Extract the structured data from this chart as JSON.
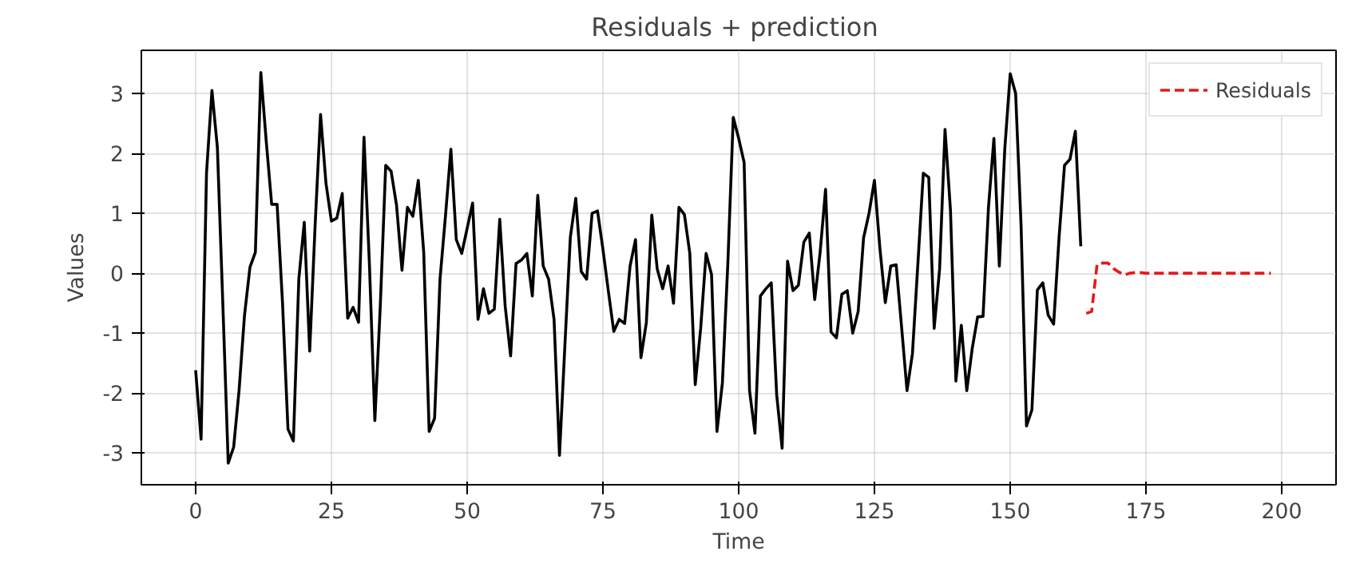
{
  "chart_data": {
    "type": "line",
    "title": "Residuals +  prediction",
    "xlabel": "Time",
    "ylabel": "Values",
    "xlim": [
      -10,
      210
    ],
    "ylim": [
      -3.53,
      3.72
    ],
    "xticks": [
      0,
      25,
      50,
      75,
      100,
      125,
      150,
      175,
      200
    ],
    "yticks": [
      -3,
      -2,
      -1,
      0,
      1,
      2,
      3
    ],
    "grid": true,
    "legend": "top right",
    "line_style": "solid",
    "marker": "none",
    "series": [
      {
        "color": "#000000",
        "x": [
          0,
          1,
          2,
          3,
          4,
          5,
          6,
          7,
          8,
          9,
          10,
          11,
          12,
          13,
          14,
          15,
          16,
          17,
          18,
          19,
          20,
          21,
          22,
          23,
          24,
          25,
          26,
          27,
          28,
          29,
          30,
          31,
          32,
          33,
          34,
          35,
          36,
          37,
          38,
          39,
          40,
          41,
          42,
          43,
          44,
          45,
          46,
          47,
          48,
          49,
          50,
          51,
          52,
          53,
          54,
          55,
          56,
          57,
          58,
          59,
          60,
          61,
          62,
          63,
          64,
          65,
          66,
          67,
          68,
          69,
          70,
          71,
          72,
          73,
          74,
          75,
          76,
          77,
          78,
          79,
          80,
          81,
          82,
          83,
          84,
          85,
          86,
          87,
          88,
          89,
          90,
          91,
          92,
          93,
          94,
          95,
          96,
          97,
          98,
          99,
          100,
          101,
          102,
          103,
          104,
          105,
          106,
          107,
          108,
          109,
          110,
          111,
          112,
          113,
          114,
          115,
          116,
          117,
          118,
          119,
          120,
          121,
          122,
          123,
          124,
          125,
          126,
          127,
          128,
          129,
          130,
          131,
          132,
          133,
          134,
          135,
          136,
          137,
          138,
          139,
          140,
          141,
          142,
          143,
          144,
          145,
          146,
          147,
          148,
          149,
          150,
          151,
          152,
          153,
          154,
          155,
          156,
          157,
          158,
          159,
          160,
          161,
          162,
          163
        ],
        "values": [
          -1.62,
          -2.77,
          1.67,
          3.05,
          2.1,
          -0.5,
          -3.17,
          -2.9,
          -1.95,
          -0.7,
          0.1,
          0.35,
          3.35,
          2.2,
          1.15,
          1.15,
          -0.5,
          -2.6,
          -2.8,
          -0.1,
          0.85,
          -1.3,
          0.8,
          2.65,
          1.5,
          0.87,
          0.92,
          1.33,
          -0.75,
          -0.57,
          -0.82,
          2.27,
          0.15,
          -2.46,
          -0.55,
          1.8,
          1.7,
          1.13,
          0.05,
          1.1,
          0.95,
          1.55,
          0.35,
          -2.64,
          -2.42,
          -0.1,
          0.95,
          2.07,
          0.56,
          0.33,
          0.75,
          1.17,
          -0.77,
          -0.26,
          -0.67,
          -0.6,
          0.9,
          -0.55,
          -1.38,
          0.16,
          0.22,
          0.33,
          -0.38,
          1.3,
          0.12,
          -0.1,
          -0.77,
          -3.04,
          -1.2,
          0.6,
          1.25,
          0.03,
          -0.1,
          1.0,
          1.04,
          0.4,
          -0.3,
          -0.97,
          -0.77,
          -0.84,
          0.12,
          0.56,
          -1.41,
          -0.82,
          0.97,
          0.07,
          -0.26,
          0.12,
          -0.5,
          1.1,
          0.98,
          0.33,
          -1.86,
          -0.92,
          0.33,
          -0.02,
          -2.64,
          -1.83,
          0.16,
          2.6,
          2.25,
          1.85,
          -1.96,
          -2.67,
          -0.38,
          -0.26,
          -0.16,
          -2.03,
          -2.92,
          0.2,
          -0.29,
          -0.2,
          0.52,
          0.67,
          -0.44,
          0.35,
          1.4,
          -0.98,
          -1.08,
          -0.35,
          -0.29,
          -1.0,
          -0.64,
          0.59,
          1.0,
          1.55,
          0.42,
          -0.49,
          0.12,
          0.14,
          -0.9,
          -1.96,
          -1.34,
          0.16,
          1.67,
          1.6,
          -0.92,
          0.07,
          2.4,
          1.05,
          -1.8,
          -0.87,
          -1.96,
          -1.26,
          -0.73,
          -0.72,
          1.1,
          2.25,
          0.12,
          2.07,
          3.33,
          3.0,
          0.8,
          -2.55,
          -2.28,
          -0.28,
          -0.16,
          -0.7,
          -0.85,
          0.6,
          1.8,
          1.9,
          2.37,
          0.45
        ]
      },
      {
        "name": "Residuals",
        "color": "#e41a1c",
        "line_style": "dashed",
        "x": [
          164,
          165,
          166,
          167,
          168,
          169,
          170,
          171,
          172,
          173,
          174,
          175,
          176,
          177,
          178,
          179,
          180,
          181,
          182,
          183,
          184,
          185,
          186,
          187,
          188,
          189,
          190,
          191,
          192,
          193,
          194,
          195,
          196,
          197,
          198
        ],
        "values": [
          -0.67,
          -0.64,
          0.15,
          0.17,
          0.17,
          0.08,
          0.02,
          -0.03,
          0.0,
          0.01,
          0.01,
          0.0,
          0.0,
          0.0,
          0.0,
          0.0,
          0.0,
          0.0,
          0.0,
          0.0,
          0.0,
          0.0,
          0.0,
          0.0,
          0.0,
          0.0,
          0.0,
          0.0,
          0.0,
          0.0,
          0.0,
          0.0,
          0.0,
          0.0,
          0.0
        ]
      }
    ]
  }
}
